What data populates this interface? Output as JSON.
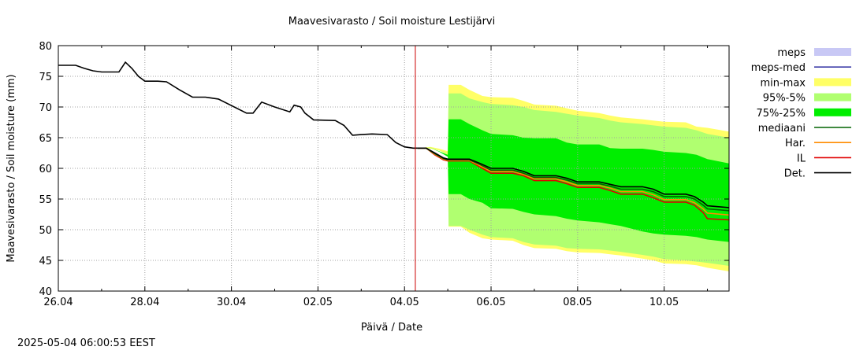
{
  "chart_data": {
    "type": "area",
    "title": "Maavesivarasto / Soil moisture   Lestijärvi",
    "xlabel": "Päivä / Date",
    "ylabel": "Maavesivarasto / Soil moisture (mm)",
    "xlim": [
      0,
      15.5
    ],
    "ylim": [
      40,
      80
    ],
    "x_unit": "days since 26.04",
    "x_ticks": [
      {
        "x": 0,
        "label": "26.04"
      },
      {
        "x": 2,
        "label": "28.04"
      },
      {
        "x": 4,
        "label": "30.04"
      },
      {
        "x": 6,
        "label": "02.05"
      },
      {
        "x": 8,
        "label": "04.05"
      },
      {
        "x": 10,
        "label": "06.05"
      },
      {
        "x": 12,
        "label": "08.05"
      },
      {
        "x": 14,
        "label": "10.05"
      }
    ],
    "y_ticks": [
      40,
      45,
      50,
      55,
      60,
      65,
      70,
      75,
      80
    ],
    "grid": true,
    "legend_position": "right",
    "forecast_start_x": 8.25,
    "legend": [
      {
        "key": "meps",
        "label": "meps",
        "kind": "fill",
        "color": "#c8c8f5"
      },
      {
        "key": "meps_med",
        "label": "meps-med",
        "kind": "line",
        "color": "#3c3ca8"
      },
      {
        "key": "minmax",
        "label": "min-max",
        "kind": "fill",
        "color": "#ffff66"
      },
      {
        "key": "p95_5",
        "label": "95%-5%",
        "kind": "fill",
        "color": "#b0ff70"
      },
      {
        "key": "p75_25",
        "label": "75%-25%",
        "kind": "fill",
        "color": "#00ee00"
      },
      {
        "key": "median",
        "label": "mediaani",
        "kind": "line",
        "color": "#006400"
      },
      {
        "key": "har",
        "label": "Har.",
        "kind": "line",
        "color": "#ff8c00"
      },
      {
        "key": "il",
        "label": "IL",
        "kind": "line",
        "color": "#e00000"
      },
      {
        "key": "det",
        "label": "Det.",
        "kind": "line",
        "color": "#000000"
      }
    ],
    "observed": {
      "x": [
        0,
        0.4,
        0.6,
        0.8,
        1.0,
        1.4,
        1.55,
        1.7,
        1.85,
        2.0,
        2.3,
        2.5,
        2.8,
        3.1,
        3.4,
        3.5,
        3.7,
        4.35,
        4.5,
        4.7,
        5.0,
        5.35,
        5.45,
        5.6,
        5.7,
        5.9,
        6.4,
        6.6,
        6.8,
        7.0,
        7.25,
        7.6,
        7.8,
        8.0,
        8.2,
        8.3
      ],
      "y": [
        76.8,
        76.8,
        76.3,
        75.9,
        75.7,
        75.7,
        77.3,
        76.3,
        75.0,
        74.2,
        74.2,
        74.1,
        72.8,
        71.6,
        71.6,
        71.5,
        71.3,
        69.0,
        69.0,
        70.8,
        70.0,
        69.2,
        70.3,
        70.0,
        69.0,
        67.9,
        67.8,
        67.0,
        65.4,
        65.5,
        65.6,
        65.5,
        64.2,
        63.5,
        63.3,
        63.3
      ]
    },
    "forecast_x": [
      8.3,
      8.5,
      8.7,
      8.9,
      9.0,
      9.5,
      9.75,
      10.0,
      10.5,
      10.75,
      11.0,
      11.5,
      11.75,
      12.0,
      12.5,
      12.75,
      13.0,
      13.5,
      13.75,
      14.0,
      14.5,
      14.7,
      14.9,
      15.0,
      15.5
    ],
    "series": [
      {
        "key": "det",
        "name": "Det.",
        "values": [
          63.3,
          63.3,
          62.5,
          61.7,
          61.5,
          61.5,
          60.8,
          60.0,
          60.0,
          59.5,
          58.8,
          58.8,
          58.4,
          57.8,
          57.8,
          57.4,
          57.0,
          57.0,
          56.6,
          55.8,
          55.8,
          55.4,
          54.5,
          53.9,
          53.6
        ]
      },
      {
        "key": "median",
        "name": "mediaani",
        "values": [
          63.3,
          63.3,
          62.4,
          61.6,
          61.4,
          61.4,
          60.6,
          59.7,
          59.7,
          59.2,
          58.5,
          58.5,
          58.1,
          57.5,
          57.5,
          57.1,
          56.6,
          56.6,
          56.2,
          55.4,
          55.4,
          55.0,
          54.0,
          53.4,
          53.1
        ]
      },
      {
        "key": "har",
        "name": "Har.",
        "values": [
          63.3,
          63.3,
          62.3,
          61.5,
          61.3,
          61.3,
          60.4,
          59.5,
          59.5,
          59.0,
          58.3,
          58.3,
          57.8,
          57.2,
          57.2,
          56.8,
          56.2,
          56.2,
          55.7,
          54.9,
          54.9,
          54.4,
          53.4,
          52.7,
          52.4
        ]
      },
      {
        "key": "il",
        "name": "IL",
        "values": [
          63.3,
          63.3,
          62.2,
          61.4,
          61.2,
          61.2,
          60.2,
          59.2,
          59.2,
          58.8,
          58.0,
          58.0,
          57.5,
          56.9,
          56.9,
          56.4,
          55.8,
          55.8,
          55.2,
          54.5,
          54.5,
          54.0,
          52.8,
          51.8,
          51.6
        ]
      }
    ],
    "bands": [
      {
        "key": "minmax",
        "name": "min-max",
        "x": [
          8.3,
          8.6,
          8.8,
          9.0,
          9.02,
          9.3,
          9.5,
          9.8,
          10.0,
          10.5,
          10.75,
          11.0,
          11.5,
          11.75,
          12.0,
          12.5,
          12.75,
          13.0,
          13.5,
          13.75,
          14.0,
          14.5,
          14.75,
          15.0,
          15.5
        ],
        "upper": [
          63.3,
          63.5,
          63.2,
          62.8,
          73.6,
          73.6,
          72.8,
          71.8,
          71.6,
          71.5,
          71.0,
          70.4,
          70.2,
          69.8,
          69.4,
          69.0,
          68.6,
          68.3,
          68.0,
          67.8,
          67.6,
          67.5,
          66.8,
          66.6,
          66.0
        ],
        "lower": [
          63.3,
          63.2,
          62.9,
          62.2,
          50.5,
          50.5,
          49.5,
          48.6,
          48.4,
          48.2,
          47.5,
          47.0,
          46.9,
          46.5,
          46.3,
          46.2,
          46.0,
          45.8,
          45.3,
          45.0,
          44.5,
          44.4,
          44.2,
          43.8,
          43.2
        ]
      },
      {
        "key": "p95_5",
        "name": "95%-5%",
        "x": [
          8.3,
          8.6,
          8.8,
          9.0,
          9.02,
          9.3,
          9.5,
          9.8,
          10.0,
          10.5,
          10.75,
          11.0,
          11.5,
          11.75,
          12.0,
          12.5,
          12.75,
          13.0,
          13.5,
          13.75,
          14.0,
          14.5,
          14.75,
          15.0,
          15.5
        ],
        "upper": [
          63.3,
          63.4,
          63.0,
          62.5,
          72.2,
          72.2,
          71.4,
          70.8,
          70.5,
          70.3,
          70.0,
          69.5,
          69.2,
          68.9,
          68.6,
          68.2,
          67.8,
          67.5,
          67.2,
          67.0,
          66.8,
          66.6,
          66.2,
          65.6,
          65.0
        ],
        "lower": [
          63.3,
          63.3,
          63.0,
          62.4,
          50.6,
          50.6,
          50.0,
          49.2,
          48.8,
          48.6,
          48.0,
          47.6,
          47.4,
          47.0,
          46.9,
          46.8,
          46.6,
          46.4,
          45.9,
          45.6,
          45.2,
          45.0,
          44.8,
          44.6,
          44.1
        ]
      },
      {
        "key": "p75_25",
        "name": "75%-25%",
        "x": [
          8.3,
          8.6,
          8.8,
          9.0,
          9.02,
          9.3,
          9.5,
          9.8,
          10.0,
          10.5,
          10.75,
          11.0,
          11.5,
          11.75,
          12.0,
          12.5,
          12.75,
          13.0,
          13.5,
          13.75,
          14.0,
          14.5,
          14.75,
          15.0,
          15.5
        ],
        "upper": [
          63.3,
          63.3,
          62.8,
          62.2,
          68.0,
          68.0,
          67.2,
          66.2,
          65.6,
          65.4,
          65.0,
          64.9,
          64.9,
          64.2,
          63.9,
          63.9,
          63.3,
          63.2,
          63.2,
          63.0,
          62.7,
          62.5,
          62.2,
          61.5,
          60.8
        ]
      },
      {
        "key": "p75_25_low",
        "name": "",
        "x": [],
        "upper": [],
        "lower": []
      }
    ],
    "p75_25_lower": [
      63.3,
      63.3,
      62.7,
      61.9,
      55.8,
      55.8,
      55.0,
      54.4,
      53.5,
      53.4,
      52.9,
      52.5,
      52.2,
      51.8,
      51.5,
      51.2,
      50.9,
      50.6,
      49.7,
      49.4,
      49.2,
      49.0,
      48.8,
      48.4,
      48.0
    ]
  },
  "footer": {
    "timestamp": "2025-05-04  06:00:53 EEST"
  }
}
